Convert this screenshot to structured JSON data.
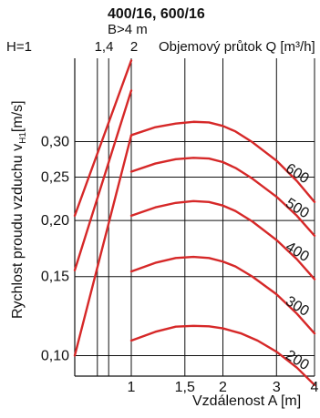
{
  "chart_data": {
    "type": "line",
    "title": "400/16, 600/16",
    "subtitle": "B>4 m",
    "header_left_label": "H=1",
    "header_h_ticks": [
      "1,4",
      "2"
    ],
    "header_right_label": "Objemový průtok Q [m³/h]",
    "xlabel": "Vzdálenost A [m]",
    "ylabel": "Rychlost proudu vzduchu  v",
    "ylabel_subscript": "H1",
    "ylabel_unit": "[m/s]",
    "x_ticks": [
      1,
      1.5,
      2,
      3,
      4
    ],
    "x_tick_labels": [
      "1",
      "1,5",
      "2",
      "3",
      "4"
    ],
    "y_ticks": [
      0.1,
      0.15,
      0.2,
      0.25,
      0.3
    ],
    "y_tick_labels": [
      "0,10",
      "0,15",
      "0,20",
      "0,25",
      "0,30"
    ],
    "xlim": [
      0.5,
      4
    ],
    "ylim": [
      0.09,
      0.46
    ],
    "grid": true,
    "colors": {
      "curve": "#d62828",
      "axis": "#111111"
    },
    "series": [
      {
        "name": "200",
        "x": [
          1,
          1.2,
          1.4,
          1.6,
          1.8,
          2,
          2.3,
          2.6,
          3,
          3.5,
          4
        ],
        "y": [
          0.108,
          0.113,
          0.116,
          0.1165,
          0.1162,
          0.115,
          0.112,
          0.108,
          0.102,
          0.094,
          0.086
        ]
      },
      {
        "name": "300",
        "x": [
          1,
          1.2,
          1.4,
          1.6,
          1.8,
          2,
          2.2,
          2.5,
          3,
          3.5,
          4
        ],
        "y": [
          0.154,
          0.161,
          0.165,
          0.166,
          0.165,
          0.162,
          0.158,
          0.15,
          0.137,
          0.124,
          0.112
        ]
      },
      {
        "name": "400",
        "x": [
          1,
          1.2,
          1.4,
          1.6,
          1.8,
          2,
          2.2,
          2.5,
          3,
          3.5,
          4
        ],
        "y": [
          0.205,
          0.214,
          0.219,
          0.221,
          0.22,
          0.216,
          0.21,
          0.199,
          0.181,
          0.164,
          0.148
        ]
      },
      {
        "name": "500",
        "x": [
          1,
          1.2,
          1.4,
          1.6,
          1.8,
          2,
          2.2,
          2.5,
          3,
          3.5,
          4
        ],
        "y": [
          0.257,
          0.268,
          0.274,
          0.276,
          0.275,
          0.27,
          0.262,
          0.248,
          0.226,
          0.205,
          0.185
        ]
      },
      {
        "name": "600",
        "x": [
          1,
          1.2,
          1.4,
          1.6,
          1.8,
          2,
          2.2,
          2.5,
          3,
          3.5,
          4
        ],
        "y": [
          0.31,
          0.323,
          0.329,
          0.332,
          0.331,
          0.325,
          0.316,
          0.299,
          0.272,
          0.245,
          0.22
        ]
      }
    ],
    "left_lines": [
      {
        "name": "H=1",
        "x": [
          0.5,
          1
        ],
        "y": [
          0.1,
          0.31
        ]
      },
      {
        "name": "H=1.4",
        "x": [
          0.5,
          1
        ],
        "y": [
          0.155,
          0.39
        ]
      },
      {
        "name": "H=2",
        "x": [
          0.5,
          1
        ],
        "y": [
          0.205,
          0.455
        ]
      }
    ]
  }
}
